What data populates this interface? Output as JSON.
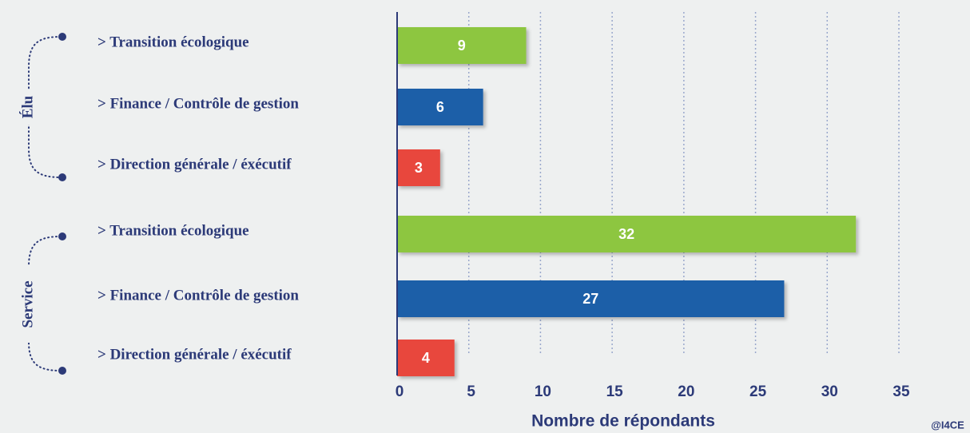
{
  "chart_data": {
    "type": "bar",
    "orientation": "horizontal",
    "categories": [
      "> Transition écologique",
      "> Finance / Contrôle de gestion",
      "> Direction générale / éxécutif",
      "> Transition écologique",
      "> Finance / Contrôle de gestion",
      "> Direction générale / éxécutif"
    ],
    "groups": [
      "Élu",
      "Service"
    ],
    "values": [
      9,
      6,
      3,
      32,
      27,
      4
    ],
    "colors": [
      "#8dc63f",
      "#1f5ea8",
      "#e8473e",
      "#8dc63f",
      "#1f5ea8",
      "#e8473e"
    ],
    "xlim": [
      0,
      35
    ],
    "xticks": [
      0,
      5,
      10,
      15,
      20,
      25,
      30,
      35
    ],
    "grid": true,
    "x_label": "Nombre de répondants",
    "source": "@I4CE"
  }
}
